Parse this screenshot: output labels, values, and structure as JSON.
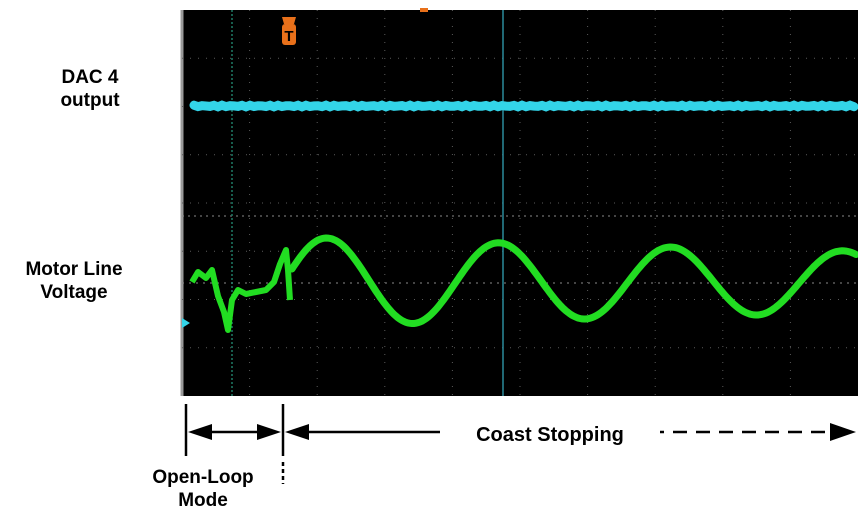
{
  "labels": {
    "dac_line1": "DAC 4",
    "dac_line2": "output",
    "motor_line1": "Motor Line",
    "motor_line2": "Voltage",
    "openloop_line1": "Open-Loop",
    "openloop_line2": "Mode",
    "coast": "Coast Stopping"
  },
  "colors": {
    "screen_bg": "#000000",
    "grid": "#5a5a5a",
    "dac_trace": "#33d4e8",
    "motor_trace": "#22dd22",
    "trigger_marker": "#e8701a",
    "annotation": "#000000"
  },
  "icons": {
    "trigger": "trigger-marker-icon"
  }
}
